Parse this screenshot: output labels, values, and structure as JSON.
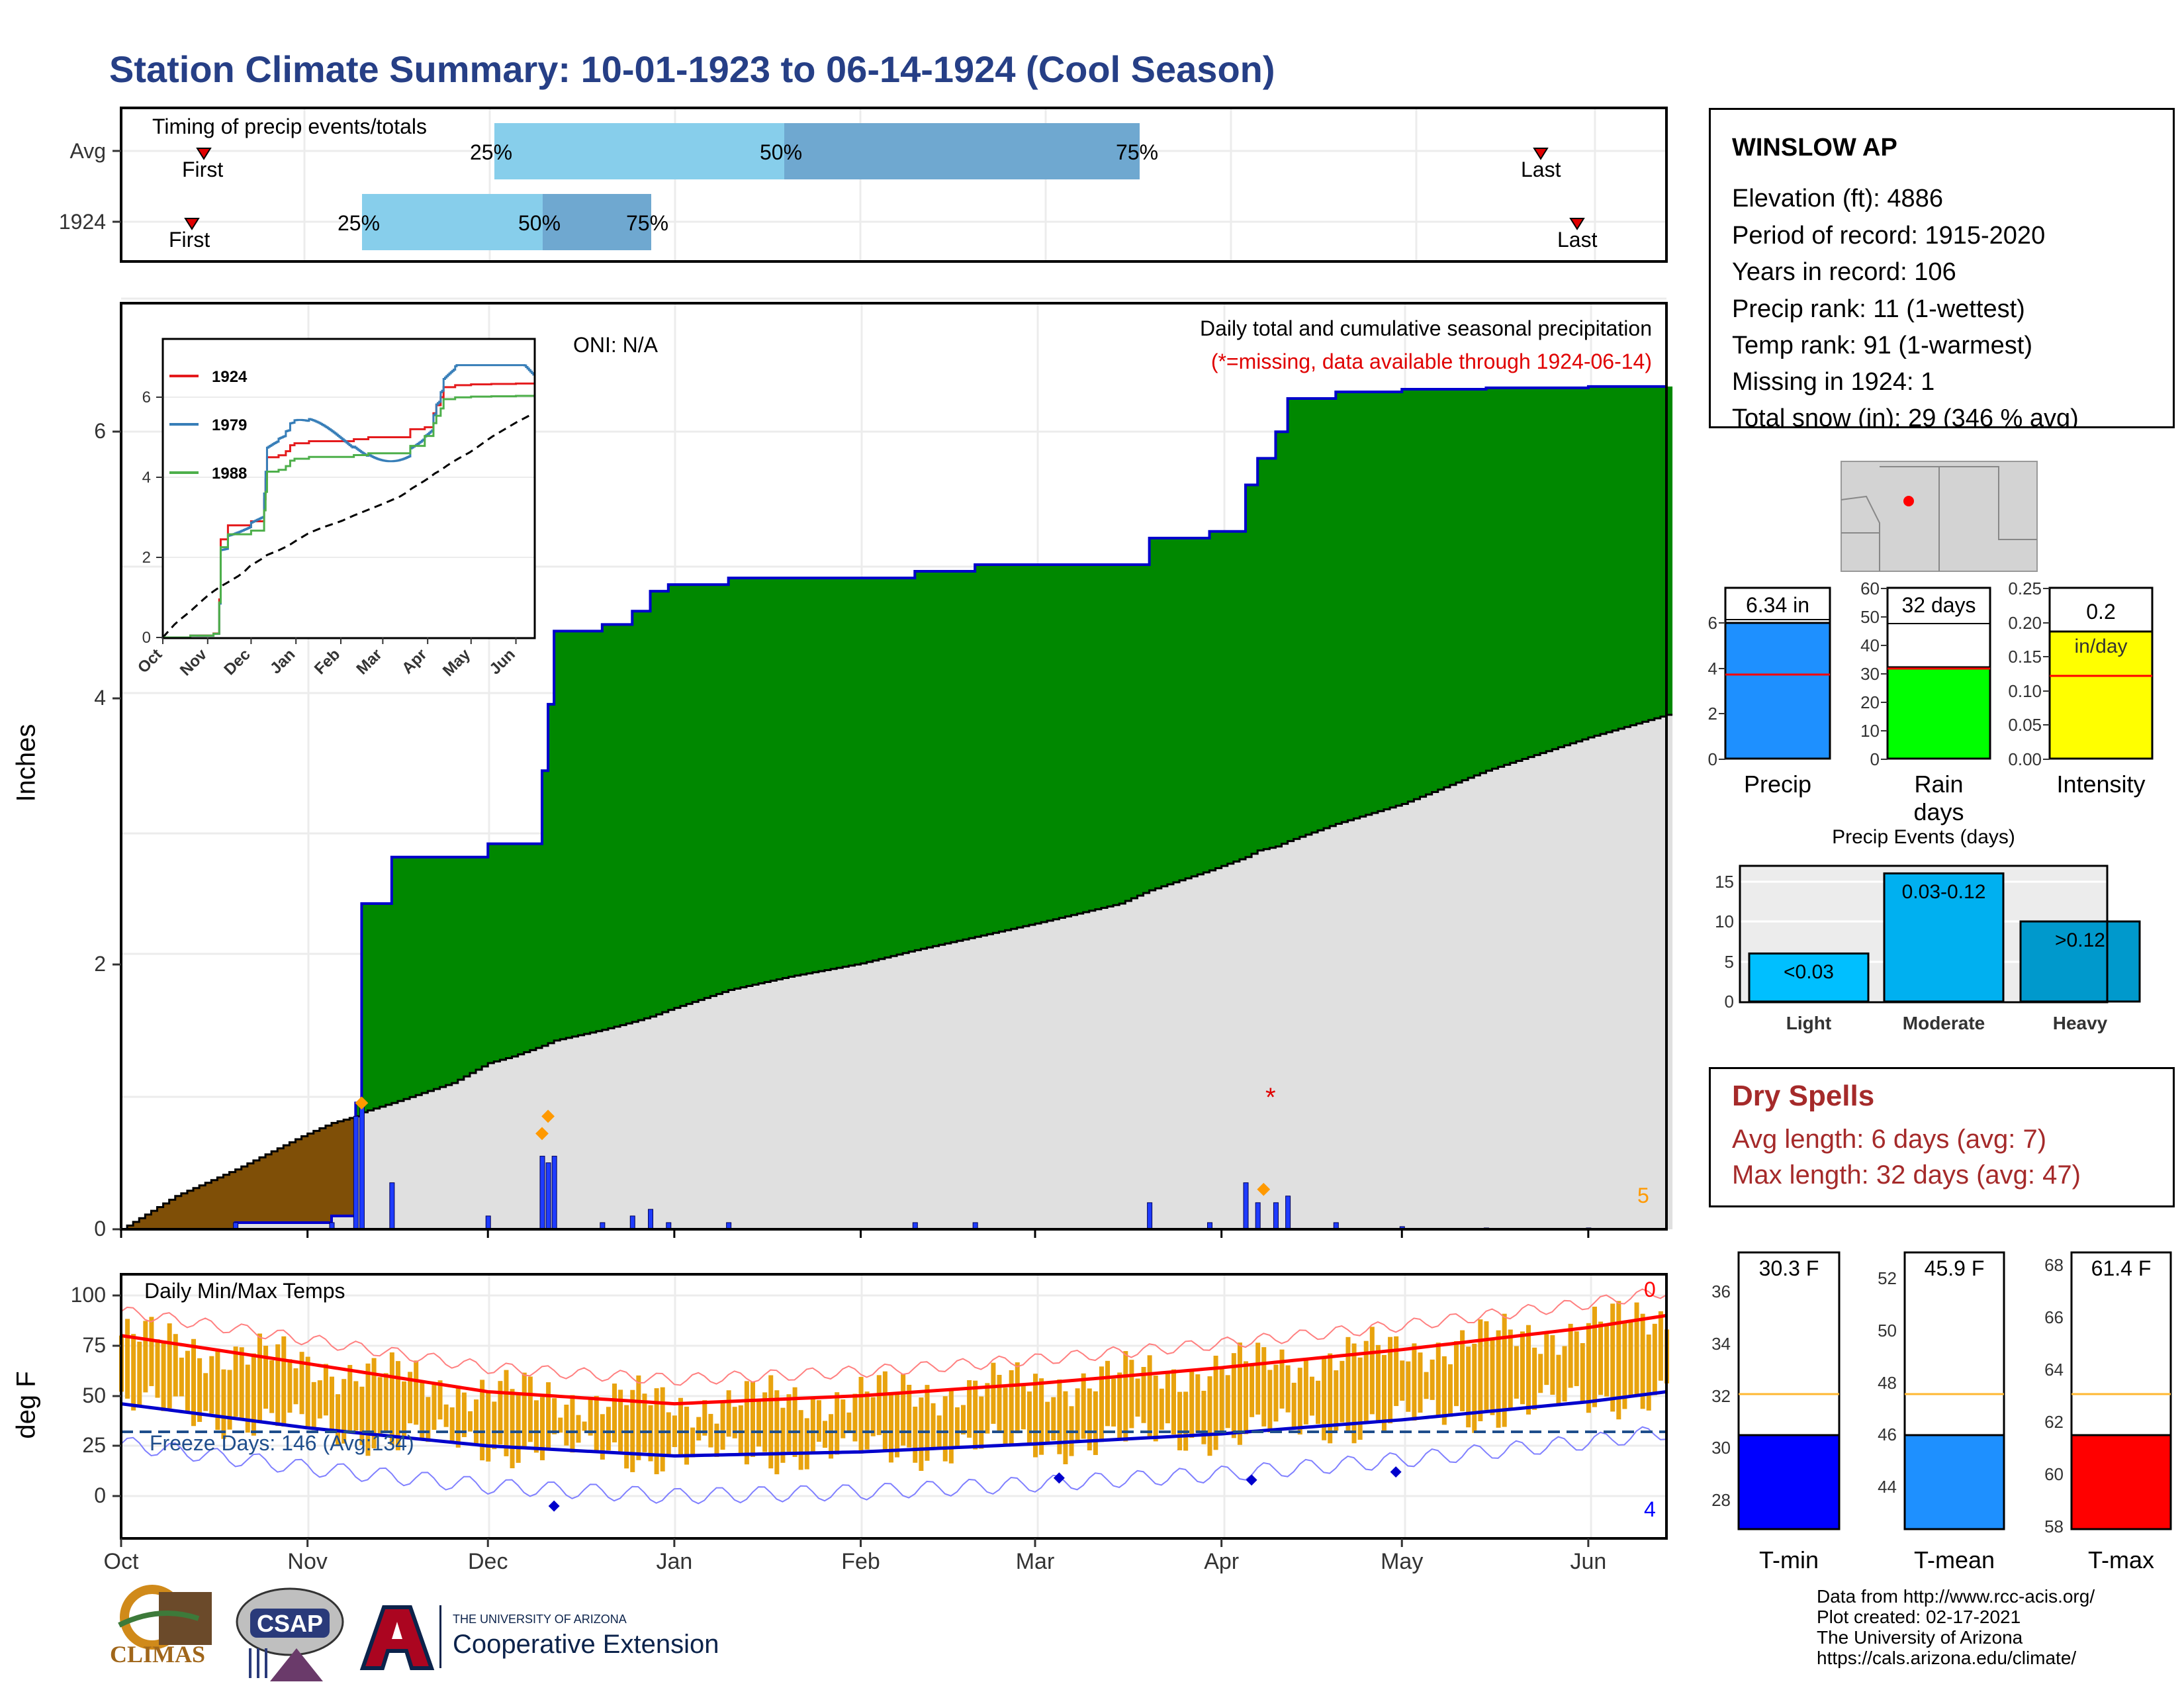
{
  "title": "Station Climate Summary: 10-01-1923 to 06-14-1924 (Cool Season)",
  "colors": {
    "title": "#263f86",
    "precip_green": "#008800",
    "avg_gray": "#e0e0e0",
    "deficit_brown": "#7f4f07",
    "bar_blue": "#1f3cff",
    "light_blue": "#87ceeb",
    "mid_blue": "#6fa8d0",
    "temp_bar": "#e8a30e",
    "dry_red": "#a52a2a"
  },
  "timing_panel": {
    "title": "Timing of precip events/totals",
    "rows": [
      {
        "label": "Avg",
        "first_label": "First",
        "last_label": "Last",
        "p25": "25%",
        "p50": "50%",
        "p75": "75%"
      },
      {
        "label": "1924",
        "first_label": "First",
        "last_label": "Last",
        "p25": "25%",
        "p50": "50%",
        "p75": "75%"
      }
    ]
  },
  "precip_panel": {
    "oni": "ONI: N/A",
    "note1": "Daily total and cumulative seasonal precipitation",
    "note2": "(*=missing, data available through 1924-06-14)",
    "y_label": "Inches",
    "y_ticks": [
      "0",
      "2",
      "4",
      "6"
    ],
    "corner_count": "5",
    "missing_marker": "*"
  },
  "inset": {
    "legend": [
      "1924",
      "1979",
      "1988"
    ],
    "legend_colors": [
      "#e41a1c",
      "#377eb8",
      "#4daf4a"
    ],
    "y_ticks": [
      "0",
      "2",
      "4",
      "6"
    ],
    "x_ticks": [
      "Oct",
      "Nov",
      "Dec",
      "Jan",
      "Feb",
      "Mar",
      "Apr",
      "May",
      "Jun"
    ]
  },
  "temp_panel": {
    "title": "Daily Min/Max Temps",
    "freeze": "Freeze Days: 146 (Avg:134)",
    "y_label": "deg F",
    "y_ticks": [
      "0",
      "25",
      "50",
      "75",
      "100"
    ],
    "count_top": "0",
    "count_bottom": "4"
  },
  "x_months": [
    "Oct",
    "Nov",
    "Dec",
    "Jan",
    "Feb",
    "Mar",
    "Apr",
    "May",
    "Jun"
  ],
  "station": {
    "name": "WINSLOW AP",
    "lines": [
      "Elevation (ft): 4886",
      "Period of record: 1915-2020",
      "Years in record: 106",
      "Precip rank: 11 (1-wettest)",
      "Temp rank: 91 (1-warmest)",
      "Missing in 1924: 1",
      "Total snow (in): 29 (346 % avg)"
    ]
  },
  "mini_bars": [
    {
      "label": "Precip",
      "value_label": "6.34 in",
      "sub_label": "",
      "ticks": [
        "0",
        "2",
        "4",
        "6"
      ],
      "color": "#1e90ff"
    },
    {
      "label": "Rain days",
      "value_label": "32 days",
      "sub_label": "",
      "ticks": [
        "0",
        "10",
        "20",
        "30",
        "40",
        "50",
        "60"
      ],
      "color": "#00ff00"
    },
    {
      "label": "Intensity",
      "value_label": "0.2",
      "sub_label": "in/day",
      "ticks": [
        "0.00",
        "0.05",
        "0.10",
        "0.15",
        "0.20",
        "0.25"
      ],
      "color": "#ffff00"
    }
  ],
  "events": {
    "title": "Precip Events (days)",
    "categories": [
      "Light",
      "Moderate",
      "Heavy"
    ],
    "labels": [
      "<0.03",
      "0.03-0.12",
      ">0.12"
    ],
    "ticks": [
      "0",
      "5",
      "10",
      "15"
    ]
  },
  "dry_spells": {
    "title": "Dry Spells",
    "avg": "Avg length: 6 days (avg: 7)",
    "max": "Max length: 32 days (avg: 47)"
  },
  "temp_bars": [
    {
      "label": "T-min",
      "value_label": "30.3 F",
      "ticks": [
        "28",
        "30",
        "32",
        "34",
        "36"
      ],
      "color": "#0000ff"
    },
    {
      "label": "T-mean",
      "value_label": "45.9 F",
      "ticks": [
        "44",
        "46",
        "48",
        "50",
        "52"
      ],
      "color": "#1e90ff"
    },
    {
      "label": "T-max",
      "value_label": "61.4 F",
      "ticks": [
        "58",
        "60",
        "62",
        "64",
        "66",
        "68"
      ],
      "color": "#ff0000"
    }
  ],
  "footer": {
    "lines": [
      "Data from http://www.rcc-acis.org/",
      "Plot created: 02-17-2021",
      "The University of Arizona",
      "https://cals.arizona.edu/climate/"
    ],
    "climas": "CLIMAS",
    "csap": "CSAP",
    "ua_small": "THE UNIVERSITY OF ARIZONA",
    "ua_big": "Cooperative Extension"
  },
  "chart_data": [
    {
      "type": "bar",
      "title": "Timing of precip events/totals",
      "categories": [
        "Avg",
        "1924"
      ],
      "series": [
        {
          "name": "First",
          "values": [
            "1923-10-17",
            "1923-10-13"
          ]
        },
        {
          "name": "25%",
          "values": [
            "1923-12-01",
            "1923-11-09"
          ]
        },
        {
          "name": "50%",
          "values": [
            "1924-01-18",
            "1923-12-10"
          ]
        },
        {
          "name": "75%",
          "values": [
            "1924-03-18",
            "1923-12-28"
          ]
        },
        {
          "name": "Last",
          "values": [
            "1924-05-29",
            "1924-06-04"
          ]
        }
      ]
    },
    {
      "type": "area",
      "title": "Daily total and cumulative seasonal precipitation",
      "ylabel": "Inches",
      "ylim": [
        0,
        6.8
      ],
      "x_dates": [
        "1923-10-01",
        "1923-10-10",
        "1923-10-20",
        "1923-10-31",
        "1923-11-05",
        "1923-11-09",
        "1923-11-10",
        "1923-11-15",
        "1923-11-25",
        "1923-12-01",
        "1923-12-05",
        "1923-12-10",
        "1923-12-11",
        "1923-12-12",
        "1923-12-20",
        "1923-12-25",
        "1923-12-28",
        "1923-12-31",
        "1924-01-10",
        "1924-01-20",
        "1924-02-01",
        "1924-02-10",
        "1924-02-20",
        "1924-03-01",
        "1924-03-15",
        "1924-03-20",
        "1924-03-30",
        "1924-04-05",
        "1924-04-07",
        "1924-04-10",
        "1924-04-12",
        "1924-04-20",
        "1924-05-01",
        "1924-05-15",
        "1924-06-01",
        "1924-06-14"
      ],
      "series": [
        {
          "name": "1924",
          "values": [
            0,
            0,
            0.05,
            0.05,
            0.1,
            0.95,
            2.45,
            2.8,
            2.8,
            2.9,
            2.9,
            3.45,
            3.95,
            4.5,
            4.55,
            4.65,
            4.8,
            4.85,
            4.9,
            4.9,
            4.9,
            4.95,
            5.0,
            5.0,
            5.0,
            5.2,
            5.25,
            5.6,
            5.8,
            6.0,
            6.25,
            6.3,
            6.32,
            6.33,
            6.34,
            6.34
          ]
        },
        {
          "name": "Avg",
          "values": [
            0,
            0.25,
            0.45,
            0.7,
            0.8,
            0.85,
            0.88,
            0.95,
            1.1,
            1.25,
            1.3,
            1.38,
            1.4,
            1.42,
            1.5,
            1.56,
            1.6,
            1.65,
            1.8,
            1.9,
            2.0,
            2.1,
            2.2,
            2.3,
            2.45,
            2.55,
            2.7,
            2.8,
            2.85,
            2.88,
            2.92,
            3.05,
            3.2,
            3.45,
            3.7,
            3.87
          ]
        }
      ]
    },
    {
      "type": "line",
      "title": "Daily Min/Max Temps",
      "ylabel": "deg F",
      "ylim": [
        -20,
        110
      ],
      "x_dates": [
        "1923-10-01",
        "1923-11-01",
        "1923-12-01",
        "1924-01-01",
        "1924-02-01",
        "1924-03-01",
        "1924-04-01",
        "1924-05-01",
        "1924-06-01",
        "1924-06-14"
      ],
      "series": [
        {
          "name": "Avg max",
          "values": [
            80,
            66,
            52,
            46,
            50,
            56,
            64,
            73,
            84,
            90
          ]
        },
        {
          "name": "Avg min",
          "values": [
            46,
            34,
            25,
            20,
            22,
            26,
            31,
            38,
            47,
            52
          ]
        }
      ]
    },
    {
      "type": "bar",
      "categories": [
        "Light",
        "Moderate",
        "Heavy"
      ],
      "values": [
        6,
        16,
        10
      ],
      "title": "Precip Events (days)",
      "ylim": [
        0,
        16.5
      ]
    }
  ]
}
